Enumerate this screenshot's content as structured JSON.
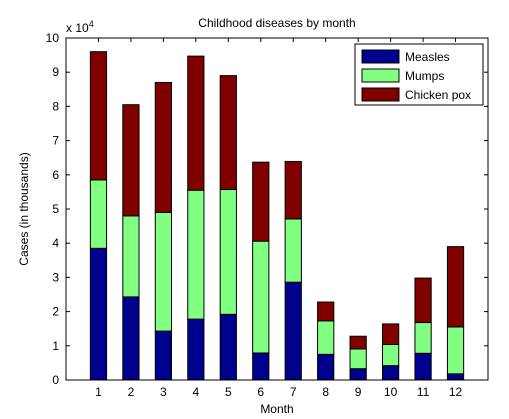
{
  "chart_data": {
    "type": "bar",
    "stacked": true,
    "title": "Childhood diseases by month",
    "xlabel": "Month",
    "ylabel": "Cases (in thousands)",
    "exponent_label": "x 10",
    "exponent_power": "4",
    "categories": [
      "1",
      "2",
      "3",
      "4",
      "5",
      "6",
      "7",
      "8",
      "9",
      "10",
      "11",
      "12"
    ],
    "y_ticks": [
      "0",
      "1",
      "2",
      "3",
      "4",
      "5",
      "6",
      "7",
      "8",
      "9",
      "10"
    ],
    "ylim": [
      0,
      10
    ],
    "grid": false,
    "legend_position": "top-right",
    "series": [
      {
        "name": "Measles",
        "color": "#00008f",
        "values": [
          3.85,
          2.43,
          1.43,
          1.78,
          1.92,
          0.79,
          2.86,
          0.75,
          0.33,
          0.42,
          0.78,
          0.18
        ]
      },
      {
        "name": "Mumps",
        "color": "#80ff80",
        "values": [
          2.0,
          2.37,
          3.47,
          3.77,
          3.65,
          3.27,
          1.85,
          0.98,
          0.58,
          0.62,
          0.9,
          1.37
        ]
      },
      {
        "name": "Chicken pox",
        "color": "#800000",
        "values": [
          3.75,
          3.25,
          3.8,
          3.92,
          3.33,
          2.31,
          1.68,
          0.55,
          0.37,
          0.6,
          1.3,
          2.35
        ]
      }
    ]
  }
}
